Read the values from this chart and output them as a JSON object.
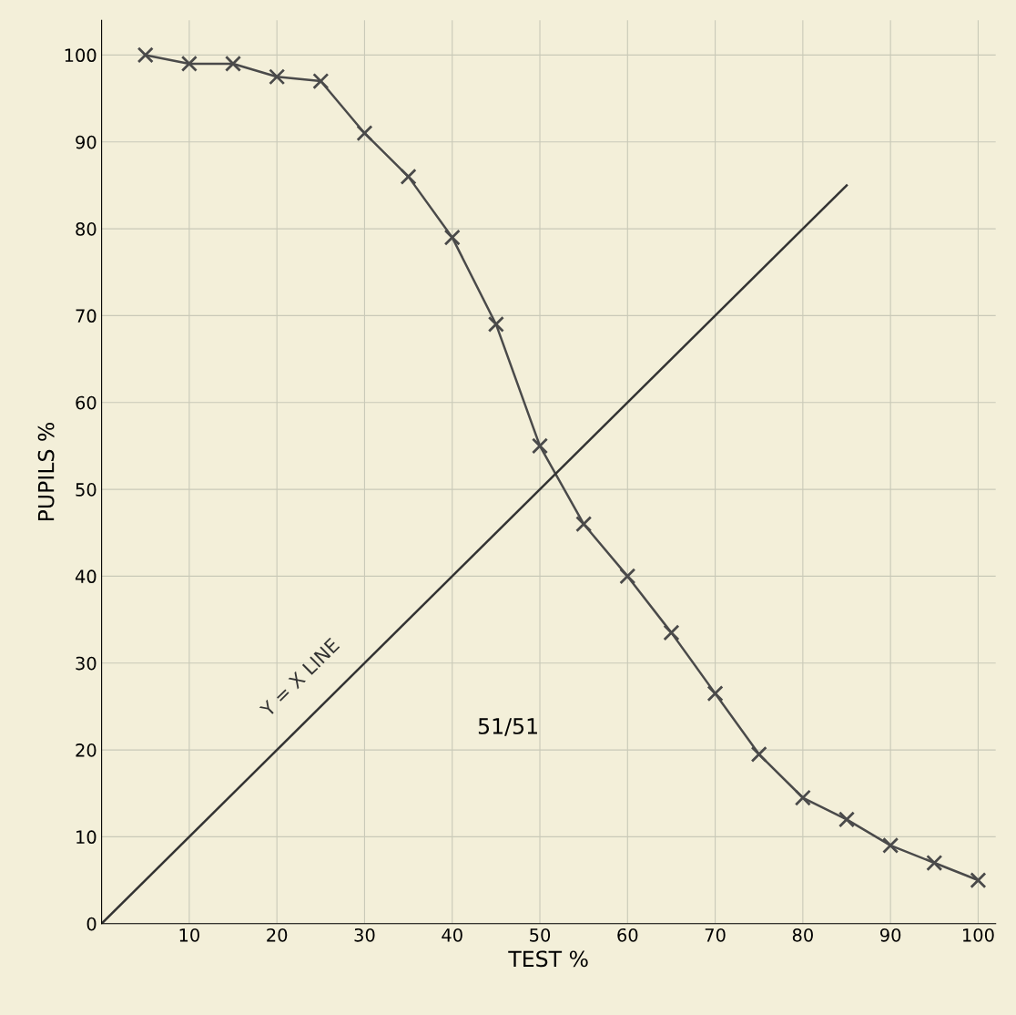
{
  "chart_data": {
    "type": "line",
    "xlabel": "TEST %",
    "ylabel": "PUPILS %",
    "xlim": [
      0,
      102
    ],
    "ylim": [
      0,
      104
    ],
    "xticks": [
      10,
      20,
      30,
      40,
      50,
      60,
      70,
      80,
      90,
      100
    ],
    "yticks": [
      0,
      10,
      20,
      30,
      40,
      50,
      60,
      70,
      80,
      90,
      100
    ],
    "grid": true,
    "marker": "cross",
    "line_style": "solid",
    "series": [
      {
        "color": "#4a4a4a",
        "x": [
          5,
          10,
          15,
          20,
          25,
          30,
          35,
          40,
          45,
          50,
          55,
          60,
          65,
          70,
          75,
          80,
          85,
          90,
          95,
          100
        ],
        "values": [
          100,
          99,
          99,
          97.5,
          97,
          91,
          86,
          79,
          69,
          55,
          46,
          40,
          33.5,
          26.5,
          19.5,
          14.5,
          12,
          9,
          7,
          5
        ]
      },
      {
        "name": "Y = X LINE",
        "type": "line",
        "marker": "none",
        "color": "#333333",
        "x": [
          0,
          85
        ],
        "values": [
          0,
          85
        ]
      }
    ],
    "annotations": [
      "51/51"
    ]
  }
}
